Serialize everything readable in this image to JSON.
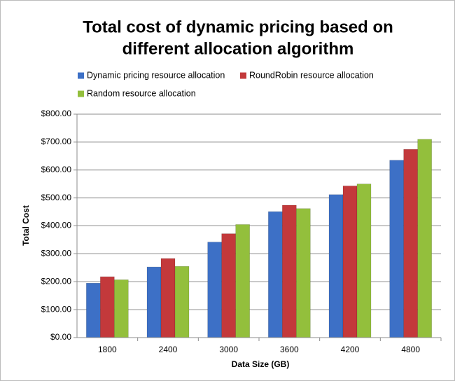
{
  "chart_data": {
    "type": "bar",
    "title": [
      "Total cost of dynamic pricing based on",
      "different allocation algorithm"
    ],
    "x_label": "Data Size (GB)",
    "y_label": "Total Cost",
    "categories": [
      "1800",
      "2400",
      "3000",
      "3600",
      "4200",
      "4800"
    ],
    "series": [
      {
        "name": "Dynamic pricing resource allocation",
        "color": "#3d70c6",
        "values": [
          195,
          253,
          342,
          451,
          512,
          635
        ]
      },
      {
        "name": "RoundRobin resource allocation",
        "color": "#c3393b",
        "values": [
          218,
          283,
          372,
          474,
          543,
          674
        ]
      },
      {
        "name": "Random resource allocation",
        "color": "#93bf3c",
        "values": [
          207,
          255,
          405,
          462,
          550,
          710
        ]
      }
    ],
    "ylim": [
      0,
      800
    ],
    "yticks": [
      {
        "value": 0,
        "label": "$0.00"
      },
      {
        "value": 100,
        "label": "$100.00"
      },
      {
        "value": 200,
        "label": "$200.00"
      },
      {
        "value": 300,
        "label": "$300.00"
      },
      {
        "value": 400,
        "label": "$400.00"
      },
      {
        "value": 500,
        "label": "$500.00"
      },
      {
        "value": 600,
        "label": "$600.00"
      },
      {
        "value": 700,
        "label": "$700.00"
      },
      {
        "value": 800,
        "label": "$800.00"
      }
    ],
    "grid": true,
    "legend": "top"
  }
}
